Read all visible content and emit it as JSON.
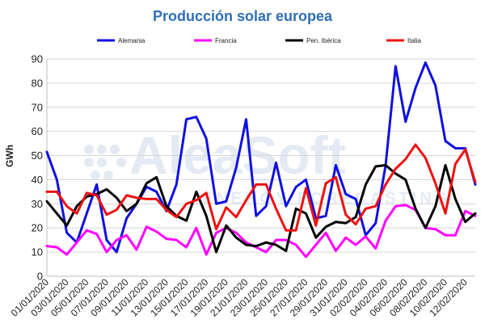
{
  "chart_data": {
    "type": "line",
    "title": "Producción solar europea",
    "ylabel": "GWh",
    "xlabel": "",
    "ylim": [
      0,
      90
    ],
    "yticks": [
      0,
      10,
      20,
      30,
      40,
      50,
      60,
      70,
      80,
      90
    ],
    "grid": true,
    "legend_position": "top",
    "x": [
      "01/01/2020",
      "02/01/2020",
      "03/01/2020",
      "04/01/2020",
      "05/01/2020",
      "06/01/2020",
      "07/01/2020",
      "08/01/2020",
      "09/01/2020",
      "10/01/2020",
      "11/01/2020",
      "12/01/2020",
      "13/01/2020",
      "14/01/2020",
      "15/01/2020",
      "16/01/2020",
      "17/01/2020",
      "18/01/2020",
      "19/01/2020",
      "20/01/2020",
      "21/01/2020",
      "22/01/2020",
      "23/01/2020",
      "24/01/2020",
      "25/01/2020",
      "26/01/2020",
      "27/01/2020",
      "28/01/2020",
      "29/01/2020",
      "30/01/2020",
      "31/01/2020",
      "01/02/2020",
      "02/02/2020",
      "03/02/2020",
      "04/02/2020",
      "05/02/2020",
      "06/02/2020",
      "07/02/2020",
      "08/02/2020",
      "09/02/2020",
      "10/02/2020",
      "11/02/2020",
      "12/02/2020",
      "13/02/2020"
    ],
    "xtick_labels": [
      "01/01/2020",
      "03/01/2020",
      "05/01/2020",
      "07/01/2020",
      "09/01/2020",
      "11/01/2020",
      "13/01/2020",
      "15/01/2020",
      "17/01/2020",
      "19/01/2020",
      "21/01/2020",
      "23/01/2020",
      "25/01/2020",
      "27/01/2020",
      "29/01/2020",
      "31/01/2020",
      "02/02/2020",
      "04/02/2020",
      "06/02/2020",
      "08/02/2020",
      "10/02/2020",
      "12/02/2020"
    ],
    "series": [
      {
        "name": "Alemania",
        "color": "#1010e0",
        "values": [
          51.5,
          40,
          18,
          14,
          26,
          38,
          15,
          10,
          24,
          30,
          37,
          35,
          27,
          38,
          65,
          66,
          57,
          30,
          31,
          45,
          65,
          25,
          29,
          47,
          29,
          37,
          40,
          24,
          25,
          46,
          34,
          32,
          17,
          22,
          46,
          87,
          64,
          78,
          88.5,
          79,
          56,
          53,
          53,
          38
        ]
      },
      {
        "name": "Francia",
        "color": "#ff00ff",
        "values": [
          12.5,
          12,
          9,
          14,
          19,
          17.5,
          10,
          15,
          17,
          11,
          20.5,
          18.5,
          15.5,
          15,
          12,
          20,
          9,
          18,
          20,
          18,
          14,
          12,
          10,
          15,
          15,
          13,
          8,
          13,
          18,
          10.5,
          16,
          13,
          16.5,
          11.5,
          23,
          29,
          29.5,
          27.5,
          20,
          19.5,
          17,
          17,
          27,
          25
        ]
      },
      {
        "name": "Pen. Ibérica",
        "color": "#000000",
        "values": [
          31,
          26,
          21,
          29,
          33,
          34,
          36,
          32.5,
          27,
          30,
          38.5,
          41,
          29,
          25,
          23,
          35,
          25,
          10,
          21,
          16,
          13,
          12.5,
          14,
          13,
          10.5,
          28,
          26,
          16,
          20.5,
          22.5,
          22,
          24.5,
          38,
          45.5,
          46,
          42.5,
          40,
          28,
          20,
          29,
          46,
          32,
          22.5,
          26
        ]
      },
      {
        "name": "Italia",
        "color": "#ee1111",
        "values": [
          35,
          35,
          29,
          26,
          34.5,
          33.5,
          25.5,
          27.5,
          33.5,
          32.5,
          32,
          32,
          27.5,
          24.5,
          30,
          31.5,
          34.5,
          19.5,
          28.5,
          24.5,
          31.5,
          38,
          38,
          28,
          19,
          19,
          36.5,
          21,
          38.5,
          41,
          25.5,
          21.5,
          28,
          29,
          38,
          44.5,
          48.5,
          54.5,
          49,
          38.5,
          26,
          46.5,
          52.5,
          39
        ]
      }
    ]
  },
  "watermark": {
    "brand": "AleaSoft",
    "tagline": "ENERGY FORECASTING"
  }
}
